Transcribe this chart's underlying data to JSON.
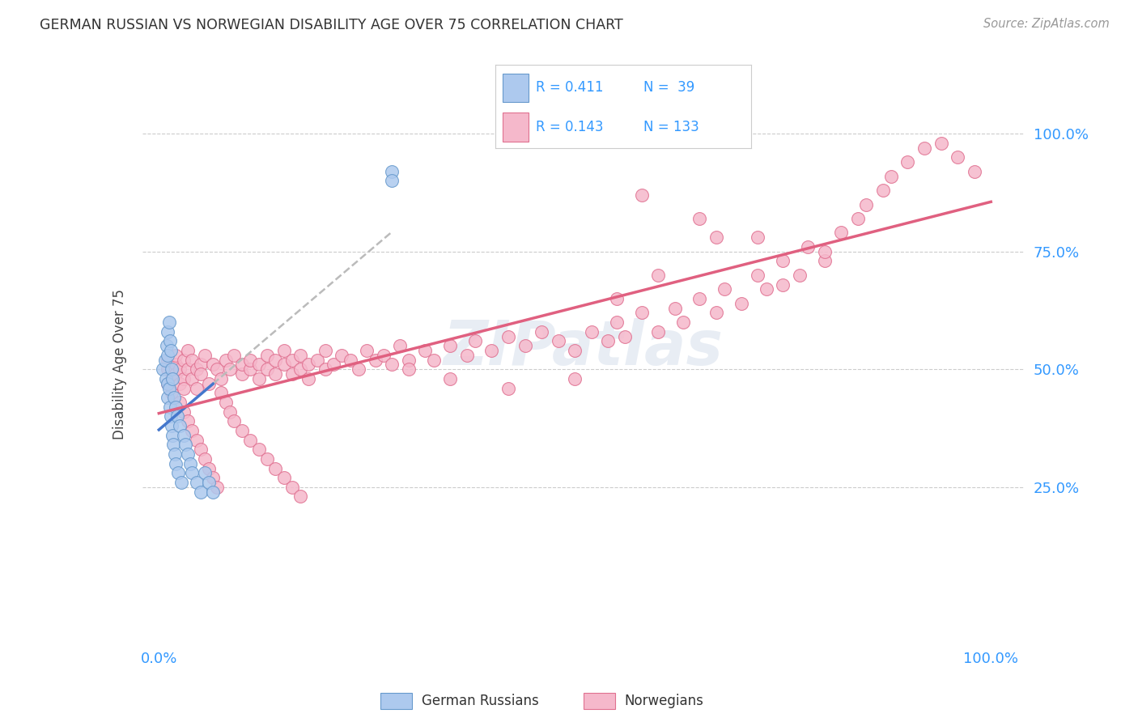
{
  "title": "GERMAN RUSSIAN VS NORWEGIAN DISABILITY AGE OVER 75 CORRELATION CHART",
  "source": "Source: ZipAtlas.com",
  "ylabel": "Disability Age Over 75",
  "background_color": "#ffffff",
  "watermark": "ZIPatlas",
  "legend_r1": "R = 0.411",
  "legend_n1": "N =  39",
  "legend_r2": "R = 0.143",
  "legend_n2": "N = 133",
  "color_blue_fill": "#adc9ee",
  "color_blue_edge": "#6699cc",
  "color_pink_fill": "#f5b8cb",
  "color_pink_edge": "#e07090",
  "color_blue_line": "#4477cc",
  "color_pink_line": "#e06080",
  "color_gray_dash": "#bbbbbb",
  "color_text_blue": "#3399ff",
  "color_title": "#333333",
  "color_source": "#999999",
  "color_grid": "#cccccc",
  "color_watermark": "#ccd8e8",
  "gr_x": [
    0.005,
    0.007,
    0.008,
    0.009,
    0.01,
    0.01,
    0.01,
    0.01,
    0.012,
    0.012,
    0.013,
    0.013,
    0.014,
    0.014,
    0.015,
    0.015,
    0.016,
    0.016,
    0.017,
    0.018,
    0.019,
    0.02,
    0.02,
    0.022,
    0.023,
    0.025,
    0.027,
    0.03,
    0.032,
    0.035,
    0.038,
    0.04,
    0.045,
    0.05,
    0.055,
    0.06,
    0.065,
    0.28,
    0.28
  ],
  "gr_y": [
    0.5,
    0.52,
    0.48,
    0.55,
    0.47,
    0.53,
    0.44,
    0.58,
    0.46,
    0.6,
    0.42,
    0.56,
    0.4,
    0.54,
    0.38,
    0.5,
    0.36,
    0.48,
    0.34,
    0.44,
    0.32,
    0.42,
    0.3,
    0.4,
    0.28,
    0.38,
    0.26,
    0.36,
    0.34,
    0.32,
    0.3,
    0.28,
    0.26,
    0.24,
    0.28,
    0.26,
    0.24,
    0.92,
    0.9
  ],
  "no_x": [
    0.01,
    0.01,
    0.01,
    0.015,
    0.015,
    0.02,
    0.02,
    0.02,
    0.025,
    0.025,
    0.03,
    0.03,
    0.03,
    0.035,
    0.035,
    0.04,
    0.04,
    0.045,
    0.045,
    0.05,
    0.05,
    0.055,
    0.06,
    0.065,
    0.07,
    0.075,
    0.08,
    0.085,
    0.09,
    0.1,
    0.1,
    0.11,
    0.11,
    0.12,
    0.12,
    0.13,
    0.13,
    0.14,
    0.14,
    0.15,
    0.15,
    0.16,
    0.16,
    0.17,
    0.17,
    0.18,
    0.18,
    0.19,
    0.2,
    0.2,
    0.21,
    0.22,
    0.23,
    0.24,
    0.25,
    0.26,
    0.27,
    0.28,
    0.29,
    0.3,
    0.3,
    0.32,
    0.33,
    0.35,
    0.37,
    0.38,
    0.4,
    0.42,
    0.44,
    0.46,
    0.48,
    0.5,
    0.52,
    0.54,
    0.55,
    0.56,
    0.58,
    0.6,
    0.62,
    0.63,
    0.65,
    0.67,
    0.68,
    0.7,
    0.72,
    0.73,
    0.75,
    0.77,
    0.78,
    0.8,
    0.82,
    0.84,
    0.85,
    0.87,
    0.88,
    0.9,
    0.92,
    0.94,
    0.96,
    0.98,
    0.025,
    0.03,
    0.035,
    0.04,
    0.045,
    0.05,
    0.055,
    0.06,
    0.065,
    0.07,
    0.075,
    0.08,
    0.085,
    0.09,
    0.1,
    0.11,
    0.12,
    0.13,
    0.14,
    0.15,
    0.16,
    0.17,
    0.35,
    0.42,
    0.5,
    0.58,
    0.65,
    0.72,
    0.8,
    0.55,
    0.6,
    0.67,
    0.75
  ],
  "no_y": [
    0.5,
    0.47,
    0.52,
    0.48,
    0.45,
    0.51,
    0.49,
    0.53,
    0.47,
    0.5,
    0.48,
    0.52,
    0.46,
    0.5,
    0.54,
    0.48,
    0.52,
    0.5,
    0.46,
    0.51,
    0.49,
    0.53,
    0.47,
    0.51,
    0.5,
    0.48,
    0.52,
    0.5,
    0.53,
    0.49,
    0.51,
    0.5,
    0.52,
    0.48,
    0.51,
    0.5,
    0.53,
    0.49,
    0.52,
    0.51,
    0.54,
    0.49,
    0.52,
    0.5,
    0.53,
    0.51,
    0.48,
    0.52,
    0.5,
    0.54,
    0.51,
    0.53,
    0.52,
    0.5,
    0.54,
    0.52,
    0.53,
    0.51,
    0.55,
    0.52,
    0.5,
    0.54,
    0.52,
    0.55,
    0.53,
    0.56,
    0.54,
    0.57,
    0.55,
    0.58,
    0.56,
    0.54,
    0.58,
    0.56,
    0.6,
    0.57,
    0.62,
    0.58,
    0.63,
    0.6,
    0.65,
    0.62,
    0.67,
    0.64,
    0.7,
    0.67,
    0.73,
    0.7,
    0.76,
    0.73,
    0.79,
    0.82,
    0.85,
    0.88,
    0.91,
    0.94,
    0.97,
    0.98,
    0.95,
    0.92,
    0.43,
    0.41,
    0.39,
    0.37,
    0.35,
    0.33,
    0.31,
    0.29,
    0.27,
    0.25,
    0.45,
    0.43,
    0.41,
    0.39,
    0.37,
    0.35,
    0.33,
    0.31,
    0.29,
    0.27,
    0.25,
    0.23,
    0.48,
    0.46,
    0.48,
    0.87,
    0.82,
    0.78,
    0.75,
    0.65,
    0.7,
    0.78,
    0.68
  ],
  "xlim": [
    -0.02,
    1.04
  ],
  "ylim": [
    -0.08,
    1.1
  ],
  "yticks": [
    0.25,
    0.5,
    0.75,
    1.0
  ],
  "ytick_labels_right": [
    "25.0%",
    "50.0%",
    "75.0%",
    "100.0%"
  ],
  "xticks": [
    0.0,
    1.0
  ],
  "xtick_labels": [
    "0.0%",
    "100.0%"
  ]
}
